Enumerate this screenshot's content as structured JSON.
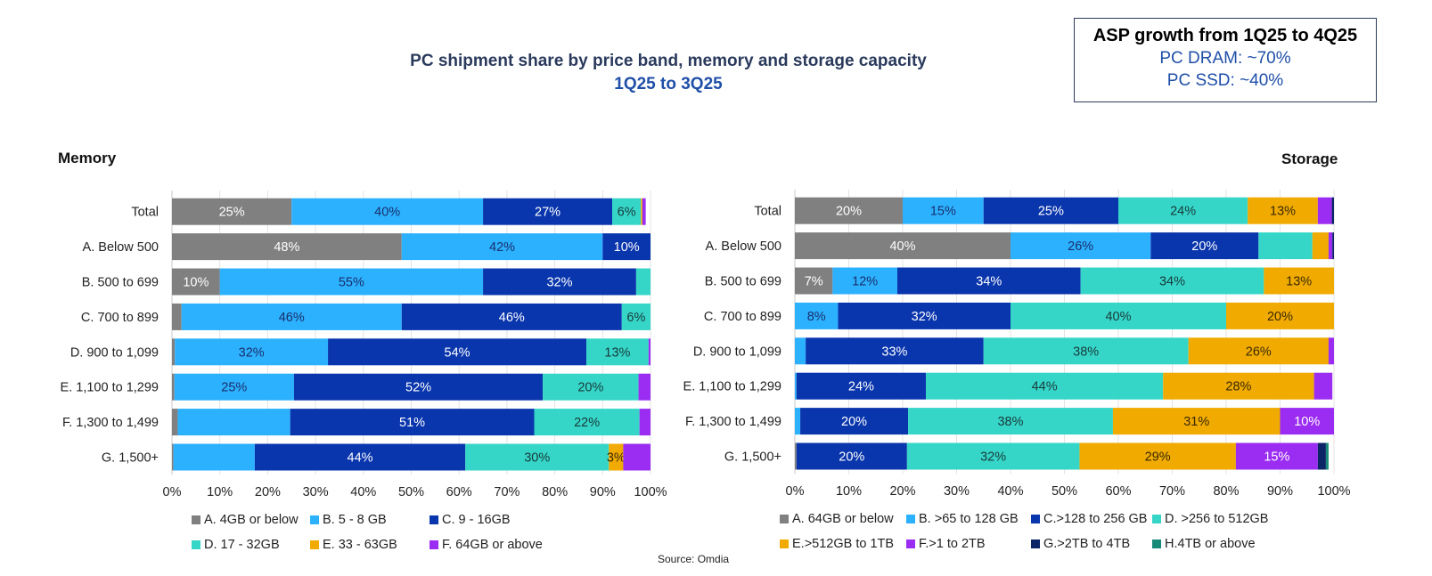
{
  "header": {
    "title": "PC shipment share by price band, memory and storage capacity",
    "subtitle": "1Q25 to 3Q25"
  },
  "asp_box": {
    "title": "ASP growth from 1Q25 to 4Q25",
    "lines": [
      "PC DRAM: ~70%",
      "PC SSD: ~40%"
    ]
  },
  "source": "Source: Omdia",
  "chart_data": [
    {
      "type": "bar",
      "orientation": "horizontal",
      "stacked": "100%",
      "title": "Memory",
      "categories": [
        "Total",
        "A. Below 500",
        "B. 500 to 699",
        "C. 700 to 899",
        "D. 900 to 1,099",
        "E. 1,100 to 1,299",
        "F. 1,300 to 1,499",
        "G. 1,500+"
      ],
      "xlim": [
        0,
        100
      ],
      "xticks": [
        "0%",
        "10%",
        "20%",
        "30%",
        "40%",
        "50%",
        "60%",
        "70%",
        "80%",
        "90%",
        "100%"
      ],
      "grid": true,
      "legend_position": "bottom",
      "series": [
        {
          "name": "A. 4GB or below",
          "color": "#808080",
          "values": [
            25,
            48,
            10,
            2,
            0.6,
            0.5,
            1.2,
            0.3
          ],
          "labels": [
            "25%",
            "48%",
            "10%",
            "",
            "",
            "",
            "",
            ""
          ],
          "label_color": "#ffffff"
        },
        {
          "name": "B. 5 - 8 GB",
          "color": "#2cb1ff",
          "values": [
            40,
            42,
            55,
            46,
            32,
            25,
            23.5,
            17
          ],
          "labels": [
            "40%",
            "42%",
            "55%",
            "46%",
            "32%",
            "25%",
            "",
            ""
          ],
          "label_color": "#1a2f6b"
        },
        {
          "name": "C. 9 - 16GB",
          "color": "#0a36ad",
          "values": [
            27,
            10,
            32,
            46,
            54,
            52,
            51,
            44
          ],
          "labels": [
            "27%",
            "10%",
            "32%",
            "46%",
            "54%",
            "52%",
            "51%",
            "44%"
          ],
          "label_color": "#ffffff"
        },
        {
          "name": "D. 17 - 32GB",
          "color": "#35d6c8",
          "values": [
            6,
            0,
            3,
            6,
            13,
            20,
            22,
            30
          ],
          "labels": [
            "6%",
            "",
            "",
            "6%",
            "13%",
            "20%",
            "22%",
            "30%"
          ],
          "label_color": "#1a3a3a"
        },
        {
          "name": "E. 33 - 63GB",
          "color": "#f0aa00",
          "values": [
            0.3,
            0,
            0,
            0,
            0,
            0,
            0,
            3
          ],
          "labels": [
            "",
            "",
            "",
            "",
            "",
            "",
            "",
            "3%"
          ],
          "label_color": "#3a2a00"
        },
        {
          "name": "F. 64GB or above",
          "color": "#9b2cf2",
          "values": [
            0.7,
            0,
            0,
            0,
            0.4,
            2.5,
            2.3,
            5.7
          ],
          "labels": [
            "",
            "",
            "",
            "",
            "",
            "",
            "",
            ""
          ],
          "label_color": "#ffffff"
        }
      ]
    },
    {
      "type": "bar",
      "orientation": "horizontal",
      "stacked": "100%",
      "title": "Storage",
      "categories": [
        "Total",
        "A. Below 500",
        "B. 500 to 699",
        "C. 700 to 899",
        "D. 900 to 1,099",
        "E. 1,100 to 1,299",
        "F. 1,300 to 1,499",
        "G. 1,500+"
      ],
      "xlim": [
        0,
        100
      ],
      "xticks": [
        "0%",
        "10%",
        "20%",
        "30%",
        "40%",
        "50%",
        "60%",
        "70%",
        "80%",
        "90%",
        "100%"
      ],
      "grid": true,
      "legend_position": "bottom",
      "series": [
        {
          "name": "A. 64GB or below",
          "color": "#808080",
          "values": [
            20,
            40,
            7,
            0,
            0,
            0,
            0,
            0.3
          ],
          "labels": [
            "20%",
            "40%",
            "7%",
            "",
            "",
            "",
            "",
            ""
          ],
          "label_color": "#ffffff"
        },
        {
          "name": "B. >65 to 128 GB",
          "color": "#2cb1ff",
          "values": [
            15,
            26,
            12,
            8,
            2,
            0.3,
            1,
            0
          ],
          "labels": [
            "15%",
            "26%",
            "12%",
            "8%",
            "",
            "",
            "",
            ""
          ],
          "label_color": "#1a2f6b"
        },
        {
          "name": "C.>128 to 256 GB",
          "color": "#0a36ad",
          "values": [
            25,
            20,
            34,
            32,
            33,
            24,
            20,
            20.5
          ],
          "labels": [
            "25%",
            "20%",
            "34%",
            "32%",
            "33%",
            "24%",
            "20%",
            "20%"
          ],
          "label_color": "#ffffff"
        },
        {
          "name": "D. >256 to 512GB",
          "color": "#35d6c8",
          "values": [
            24,
            10,
            34,
            40,
            38,
            44,
            38,
            32
          ],
          "labels": [
            "24%",
            "",
            "34%",
            "40%",
            "38%",
            "44%",
            "38%",
            "32%"
          ],
          "label_color": "#1a3a3a"
        },
        {
          "name": "E.>512GB to 1TB",
          "color": "#f0aa00",
          "values": [
            13,
            3,
            13,
            20,
            26,
            28,
            31,
            29
          ],
          "labels": [
            "13%",
            "",
            "13%",
            "20%",
            "26%",
            "28%",
            "31%",
            "29%"
          ],
          "label_color": "#3a2a00"
        },
        {
          "name": "F.>1 to 2TB",
          "color": "#9b2cf2",
          "values": [
            2.6,
            0.7,
            0.5,
            1,
            1.6,
            3.4,
            10.4,
            15.2
          ],
          "labels": [
            "",
            "",
            "",
            "",
            "",
            "",
            "10%",
            "15%"
          ],
          "label_color": "#ffffff"
        },
        {
          "name": "G.>2TB to 4TB",
          "color": "#0b2466",
          "values": [
            0.4,
            0.3,
            0,
            0,
            0,
            0,
            0,
            1.5
          ],
          "labels": [
            "",
            "",
            "",
            "",
            "",
            "",
            "",
            ""
          ],
          "label_color": "#ffffff"
        },
        {
          "name": "H.4TB or above",
          "color": "#1a8a78",
          "values": [
            0,
            0,
            0,
            0,
            0,
            0,
            0,
            0.5
          ],
          "labels": [
            "",
            "",
            "",
            "",
            "",
            "",
            "",
            ""
          ],
          "label_color": "#ffffff"
        }
      ]
    }
  ]
}
